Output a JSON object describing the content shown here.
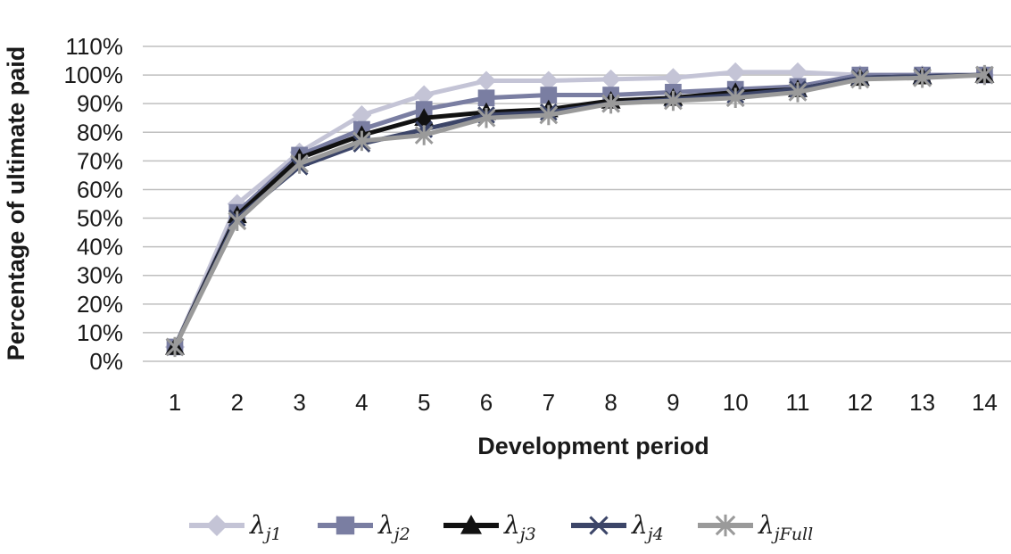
{
  "chart_data": {
    "type": "line",
    "xlabel": "Development period",
    "ylabel": "Percentage of ultimate paid",
    "ylim": [
      0,
      110
    ],
    "yticks": [
      "0%",
      "10%",
      "20%",
      "30%",
      "40%",
      "50%",
      "60%",
      "70%",
      "80%",
      "90%",
      "100%",
      "110%"
    ],
    "x": [
      "1",
      "2",
      "3",
      "4",
      "5",
      "6",
      "7",
      "8",
      "9",
      "10",
      "11",
      "12",
      "13",
      "14"
    ],
    "grid": "horizontal",
    "legend_position": "bottom",
    "series": [
      {
        "name": "λj1",
        "symbol": "λ",
        "subscript": "j1",
        "marker": "diamond",
        "color": "#c4c4d6",
        "values": [
          5,
          55,
          73,
          86,
          93,
          98,
          98,
          98.5,
          99,
          101,
          101,
          100,
          100,
          100
        ]
      },
      {
        "name": "λj2",
        "symbol": "λ",
        "subscript": "j2",
        "marker": "square",
        "color": "#7a7ea2",
        "values": [
          5,
          52,
          72,
          81,
          88,
          92,
          93,
          93,
          94,
          95,
          96,
          100,
          100,
          100
        ]
      },
      {
        "name": "λj3",
        "symbol": "λ",
        "subscript": "j3",
        "marker": "triangle",
        "color": "#111111",
        "values": [
          5,
          51,
          71,
          79,
          85,
          87,
          88,
          91,
          92,
          94,
          95,
          99,
          99.5,
          100
        ]
      },
      {
        "name": "λj4",
        "symbol": "λ",
        "subscript": "j4",
        "marker": "x",
        "color": "#3c4568",
        "values": [
          5,
          50,
          68,
          76,
          81,
          86,
          87,
          90,
          91.5,
          93,
          95,
          99,
          99.5,
          100
        ]
      },
      {
        "name": "λjFull",
        "symbol": "λ",
        "subscript": "jFull",
        "marker": "star",
        "color": "#9a9a9a",
        "values": [
          5,
          49,
          69,
          77,
          79,
          85,
          86,
          90,
          91,
          92,
          94,
          98.5,
          99,
          100
        ]
      }
    ]
  }
}
